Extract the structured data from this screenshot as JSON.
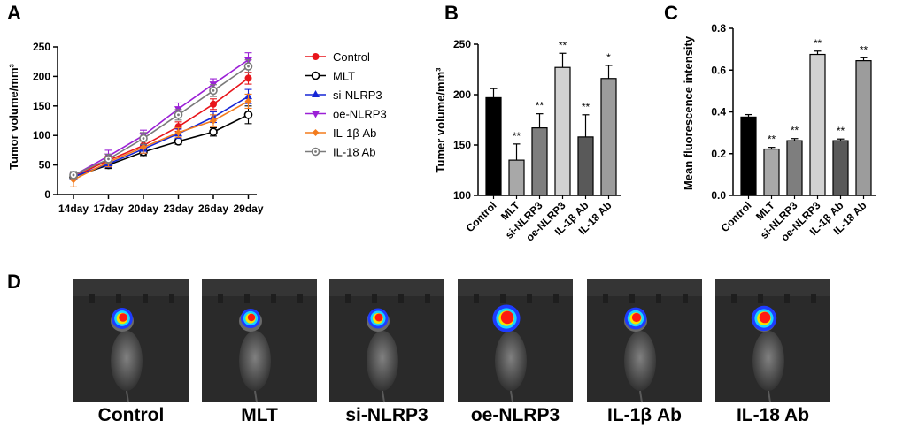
{
  "panels": {
    "a": "A",
    "b": "B",
    "c": "C",
    "d": "D"
  },
  "chart_data": [
    {
      "panel": "A",
      "type": "line",
      "ylabel": "Tumor volume/mm³",
      "xlabel": "",
      "x": [
        "14day",
        "17day",
        "20day",
        "23day",
        "26day",
        "29day"
      ],
      "ylim": [
        0,
        250
      ],
      "yticks": [
        0,
        50,
        100,
        150,
        200,
        250
      ],
      "legend_position": "right",
      "series": [
        {
          "name": "Control",
          "values": [
            30,
            58,
            83,
            115,
            153,
            197
          ],
          "errors": [
            5,
            7,
            8,
            8,
            9,
            10
          ],
          "color": "#e8151b",
          "marker": "circle-filled"
        },
        {
          "name": "MLT",
          "values": [
            30,
            50,
            72,
            90,
            106,
            135
          ],
          "errors": [
            5,
            6,
            6,
            5,
            7,
            15
          ],
          "color": "#000000",
          "marker": "circle-open"
        },
        {
          "name": "si-NLRP3",
          "values": [
            30,
            52,
            77,
            103,
            131,
            166
          ],
          "errors": [
            5,
            6,
            7,
            8,
            9,
            12
          ],
          "color": "#1626d6",
          "marker": "triangle-up"
        },
        {
          "name": "oe-NLRP3",
          "values": [
            32,
            65,
            100,
            145,
            187,
            228
          ],
          "errors": [
            6,
            10,
            9,
            10,
            9,
            12
          ],
          "color": "#9b20d6",
          "marker": "triangle-down"
        },
        {
          "name": "IL-1β Ab",
          "values": [
            25,
            55,
            80,
            105,
            125,
            158
          ],
          "errors": [
            12,
            8,
            10,
            8,
            10,
            12
          ],
          "color": "#f37b1d",
          "marker": "diamond"
        },
        {
          "name": "IL-18 Ab",
          "values": [
            33,
            60,
            95,
            135,
            176,
            217
          ],
          "errors": [
            6,
            8,
            10,
            9,
            10,
            11
          ],
          "color": "#7a7a7a",
          "marker": "circle-open-dot"
        }
      ]
    },
    {
      "panel": "B",
      "type": "bar",
      "ylabel": "Tumer volume/mm³",
      "xlabel": "",
      "categories": [
        "Control",
        "MLT",
        "si-NLRP3",
        "oe-NLRP3",
        "IL-1β Ab",
        "IL-18 Ab"
      ],
      "values": [
        197,
        135,
        167,
        227,
        158,
        216
      ],
      "errors": [
        9,
        16,
        14,
        14,
        22,
        13
      ],
      "significance": [
        "",
        "**",
        "**",
        "**",
        "**",
        "*"
      ],
      "colors": [
        "#000000",
        "#a8a8a8",
        "#7e7e7e",
        "#d2d2d2",
        "#595959",
        "#9c9c9c"
      ],
      "ylim": [
        100,
        250
      ],
      "yticks": [
        100,
        150,
        200,
        250
      ]
    },
    {
      "panel": "C",
      "type": "bar",
      "ylabel": "Mean fluorescence intensity",
      "xlabel": "",
      "categories": [
        "Control",
        "MLT",
        "si-NLRP3",
        "oe-NLRP3",
        "IL-1β Ab",
        "IL-18 Ab"
      ],
      "values": [
        0.375,
        0.222,
        0.262,
        0.675,
        0.262,
        0.645
      ],
      "errors": [
        0.012,
        0.008,
        0.01,
        0.016,
        0.008,
        0.014
      ],
      "significance": [
        "",
        "**",
        "**",
        "**",
        "**",
        "**"
      ],
      "colors": [
        "#000000",
        "#a8a8a8",
        "#7e7e7e",
        "#d2d2d2",
        "#595959",
        "#9c9c9c"
      ],
      "ylim": [
        0,
        0.8
      ],
      "yticks": [
        "0.0",
        "0.2",
        "0.4",
        "0.6",
        "0.8"
      ]
    }
  ],
  "imaging": {
    "captions": [
      "Control",
      "MLT",
      "si-NLRP3",
      "oe-NLRP3",
      "IL-1β Ab",
      "IL-18 Ab"
    ],
    "signal_scale": [
      0.55,
      0.45,
      0.5,
      0.95,
      0.6,
      0.8
    ]
  }
}
